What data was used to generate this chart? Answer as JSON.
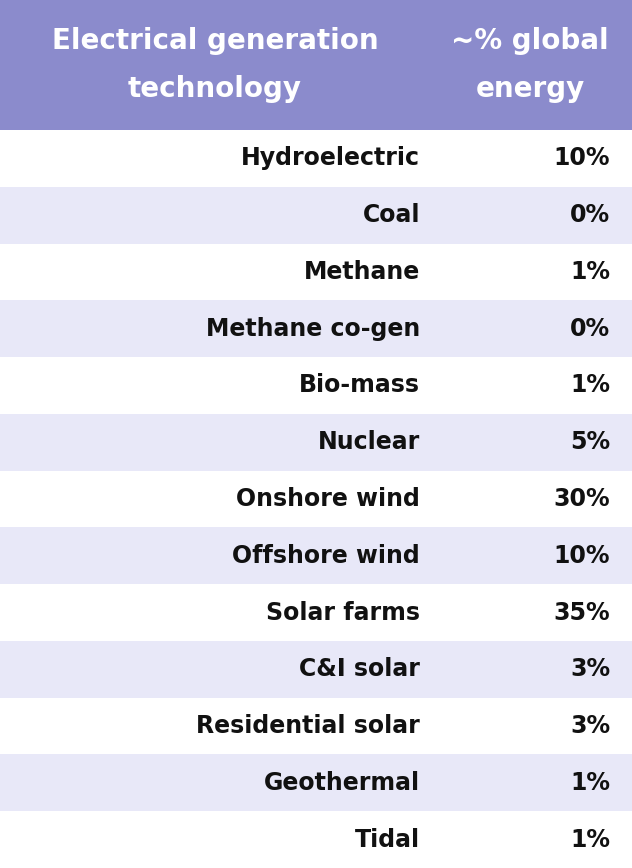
{
  "header": [
    "Electrical generation  ~% global\ntechnology  energy"
  ],
  "header_col1": "Electrical generation  ~% global\ntechnology  energy",
  "rows": [
    [
      "Hydroelectric",
      "10%"
    ],
    [
      "Coal",
      "0%"
    ],
    [
      "Methane",
      "1%"
    ],
    [
      "Methane co-gen",
      "0%"
    ],
    [
      "Bio-mass",
      "1%"
    ],
    [
      "Nuclear",
      "5%"
    ],
    [
      "Onshore wind",
      "30%"
    ],
    [
      "Offshore wind",
      "10%"
    ],
    [
      "Solar farms",
      "35%"
    ],
    [
      "C&I solar",
      "3%"
    ],
    [
      "Residential solar",
      "3%"
    ],
    [
      "Geothermal",
      "1%"
    ],
    [
      "Tidal",
      "1%"
    ]
  ],
  "header_bg": "#8b8bcc",
  "header_text_color": "#ffffff",
  "row_bg_light": "#e8e8f8",
  "row_bg_white": "#ffffff",
  "row_text_color": "#111111",
  "fig_bg": "#ffffff",
  "fig_width": 6.32,
  "fig_height": 8.68,
  "dpi": 100
}
